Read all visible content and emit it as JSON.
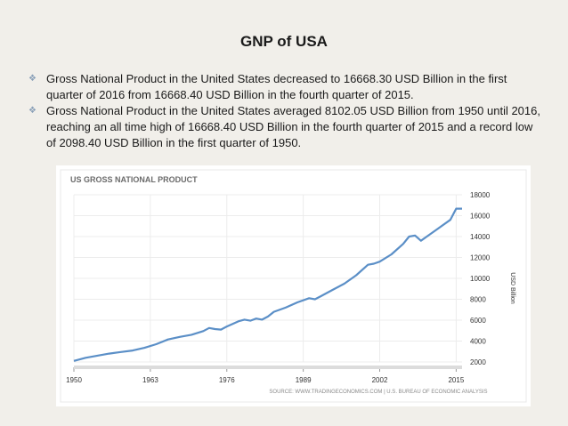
{
  "slide": {
    "title": "GNP of USA",
    "bullets": [
      "Gross National Product in the United States decreased to 16668.30 USD Billion in the first quarter of 2016 from 16668.40 USD Billion in the fourth quarter of 2015.",
      " Gross National Product in the United States averaged 8102.05 USD Billion from 1950 until 2016, reaching an all time high of 16668.40 USD Billion in the fourth quarter of 2015 and a record low of 2098.40 USD Billion in the first quarter of 1950."
    ],
    "bullet_symbol": "❖"
  },
  "chart_data": {
    "type": "line",
    "title": "US GROSS NATIONAL PRODUCT",
    "ylabel": "USD Billion",
    "xlabel": "",
    "source": "SOURCE: WWW.TRADINGECONOMICS.COM | U.S. BUREAU OF ECONOMIC ANALYSIS",
    "xlim": [
      1950,
      2016
    ],
    "ylim": [
      2000,
      18000
    ],
    "x_ticks": [
      1950,
      1963,
      1976,
      1989,
      2002,
      2015
    ],
    "y_ticks": [
      2000,
      4000,
      6000,
      8000,
      10000,
      12000,
      14000,
      16000,
      18000
    ],
    "line_color": "#5b8fc7",
    "series": [
      {
        "name": "GNP",
        "x": [
          1950,
          1952,
          1954,
          1956,
          1958,
          1960,
          1962,
          1964,
          1966,
          1968,
          1970,
          1972,
          1973,
          1974,
          1975,
          1976,
          1978,
          1979,
          1980,
          1981,
          1982,
          1983,
          1984,
          1986,
          1988,
          1990,
          1991,
          1992,
          1994,
          1996,
          1998,
          2000,
          2001,
          2002,
          2004,
          2006,
          2007,
          2008,
          2009,
          2010,
          2012,
          2014,
          2015,
          2016
        ],
        "y": [
          2098.4,
          2400,
          2600,
          2800,
          2950,
          3100,
          3350,
          3700,
          4150,
          4400,
          4600,
          4950,
          5250,
          5150,
          5100,
          5400,
          5900,
          6050,
          5950,
          6150,
          6050,
          6350,
          6800,
          7200,
          7700,
          8100,
          8000,
          8300,
          8900,
          9500,
          10300,
          11300,
          11400,
          11600,
          12300,
          13300,
          14000,
          14100,
          13600,
          14000,
          14800,
          15600,
          16668.4,
          16668.3
        ]
      }
    ]
  }
}
